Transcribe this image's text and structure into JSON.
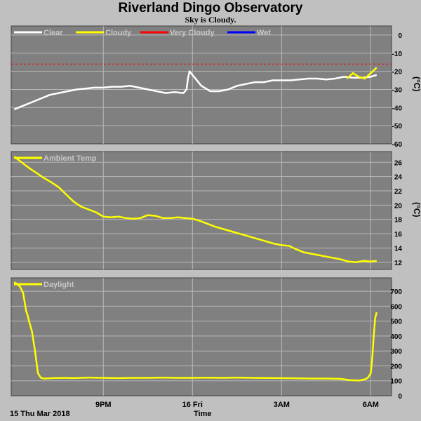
{
  "title": "Riverland Dingo Observatory",
  "subtitle": "Sky is Cloudy.",
  "date_label": "15 Thu Mar 2018",
  "x_axis_title": "Time",
  "colors": {
    "page_bg": "#c0c0c0",
    "plot_bg": "#808080",
    "grid": "#b8b8b8",
    "clear": "#ffffff",
    "cloudy": "#ffff00",
    "very_cloudy": "#ff0000",
    "wet": "#0000ff",
    "legend_text": "#c8c8c8"
  },
  "chart_data": [
    {
      "type": "line",
      "ylabel": "(°C)",
      "ylim": [
        -60,
        5
      ],
      "y_ticks": [
        "0",
        "-10",
        "-20",
        "-30",
        "-40",
        "-50",
        "-60"
      ],
      "y_tick_values": [
        0,
        -10,
        -20,
        -30,
        -40,
        -50,
        -60
      ],
      "grid": true,
      "legend_position": "top-left",
      "legend": [
        "Clear",
        "Cloudy",
        "Very Cloudy",
        "Wet"
      ],
      "thresholds": [
        {
          "name": "Very Cloudy",
          "y": -16,
          "style": "dashed"
        }
      ],
      "series": [
        {
          "name": "Clear",
          "color": "#ffffff",
          "x": [
            18.0,
            18.3,
            18.6,
            18.9,
            19.2,
            19.5,
            19.8,
            20.1,
            20.4,
            20.7,
            21.0,
            21.3,
            21.6,
            21.9,
            22.2,
            22.5,
            22.8,
            23.1,
            23.4,
            23.7,
            23.8,
            23.85,
            23.9,
            24.0,
            24.3,
            24.6,
            24.9,
            25.2,
            25.5,
            25.8,
            26.1,
            26.4,
            26.7,
            27.0,
            27.3,
            27.6,
            27.9,
            28.2,
            28.5,
            28.8,
            29.1,
            29.4,
            29.7,
            30.0,
            30.2
          ],
          "y": [
            -41,
            -39,
            -37,
            -35,
            -33,
            -32,
            -31,
            -30,
            -29.5,
            -29,
            -29,
            -28.5,
            -28.5,
            -28,
            -29,
            -30,
            -31,
            -32,
            -31.5,
            -32,
            -30,
            -24,
            -20,
            -22,
            -28,
            -31,
            -31,
            -30,
            -28,
            -27,
            -26,
            -26,
            -25,
            -25,
            -25,
            -24.5,
            -24,
            -24,
            -24.5,
            -24,
            -23,
            -23.5,
            -23.5,
            -23,
            -22
          ]
        },
        {
          "name": "Cloudy",
          "color": "#ffff00",
          "x": [
            29.2,
            29.4,
            29.6,
            29.8,
            30.0,
            30.2
          ],
          "y": [
            -24,
            -21,
            -23,
            -24,
            -21,
            -18
          ]
        }
      ]
    },
    {
      "type": "line",
      "ylabel": "(°C)",
      "ylim": [
        11,
        27.5
      ],
      "y_ticks": [
        "26",
        "24",
        "22",
        "20",
        "18",
        "16",
        "14",
        "12"
      ],
      "y_tick_values": [
        26,
        24,
        22,
        20,
        18,
        16,
        14,
        12
      ],
      "grid": true,
      "legend_position": "top-left",
      "legend": [
        "Ambient Temp"
      ],
      "series": [
        {
          "name": "Ambient Temp",
          "color": "#ffff00",
          "x": [
            18.0,
            18.25,
            18.5,
            18.75,
            19.0,
            19.25,
            19.5,
            19.75,
            20.0,
            20.25,
            20.5,
            20.75,
            21.0,
            21.25,
            21.5,
            21.75,
            22.0,
            22.25,
            22.5,
            22.75,
            23.0,
            23.25,
            23.5,
            23.75,
            24.0,
            24.25,
            24.5,
            24.75,
            25.0,
            25.25,
            25.5,
            25.75,
            26.0,
            26.25,
            26.5,
            26.75,
            27.0,
            27.25,
            27.5,
            27.75,
            28.0,
            28.25,
            28.5,
            28.75,
            29.0,
            29.25,
            29.5,
            29.75,
            30.0,
            30.2
          ],
          "y": [
            26.8,
            26.0,
            25.2,
            24.5,
            23.8,
            23.2,
            22.5,
            21.5,
            20.5,
            19.8,
            19.4,
            19.0,
            18.4,
            18.3,
            18.4,
            18.2,
            18.1,
            18.2,
            18.6,
            18.5,
            18.2,
            18.2,
            18.3,
            18.2,
            18.1,
            17.8,
            17.4,
            17.0,
            16.7,
            16.4,
            16.1,
            15.8,
            15.5,
            15.2,
            14.9,
            14.6,
            14.4,
            14.3,
            13.8,
            13.4,
            13.2,
            13.0,
            12.8,
            12.6,
            12.4,
            12.1,
            12.0,
            12.2,
            12.1,
            12.2
          ]
        }
      ]
    },
    {
      "type": "line",
      "ylim": [
        0,
        790
      ],
      "y_ticks": [
        "700",
        "600",
        "500",
        "400",
        "300",
        "200",
        "100",
        "0"
      ],
      "y_tick_values": [
        700,
        600,
        500,
        400,
        300,
        200,
        100,
        0
      ],
      "x_ticks": [
        "9PM",
        "16 Fri",
        "3AM",
        "6AM"
      ],
      "x_tick_values": [
        21,
        24,
        27,
        30
      ],
      "xlim": [
        17.9,
        30.7
      ],
      "grid": true,
      "legend_position": "top-left",
      "legend": [
        "Daylight"
      ],
      "series": [
        {
          "name": "Daylight",
          "color": "#ffff00",
          "x": [
            18.0,
            18.1,
            18.2,
            18.3,
            18.4,
            18.45,
            18.5,
            18.6,
            18.7,
            18.8,
            18.9,
            19.0,
            19.3,
            19.7,
            20.0,
            20.5,
            21.0,
            21.5,
            22.0,
            22.5,
            23.0,
            23.5,
            24.0,
            24.5,
            25.0,
            25.5,
            26.0,
            26.5,
            27.0,
            27.5,
            28.0,
            28.5,
            29.0,
            29.3,
            29.6,
            29.8,
            29.9,
            30.0,
            30.05,
            30.1,
            30.15,
            30.2
          ],
          "y": [
            760,
            750,
            730,
            690,
            570,
            540,
            500,
            430,
            300,
            150,
            120,
            115,
            118,
            120,
            118,
            122,
            120,
            118,
            120,
            120,
            122,
            120,
            120,
            121,
            120,
            122,
            120,
            119,
            118,
            117,
            115,
            115,
            113,
            105,
            102,
            110,
            120,
            150,
            250,
            400,
            520,
            560
          ]
        }
      ]
    }
  ]
}
